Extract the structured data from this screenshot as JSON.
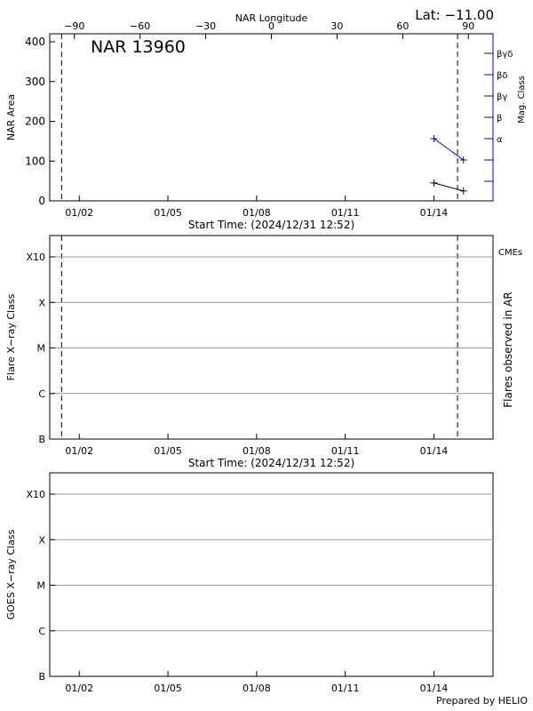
{
  "lat_label": "Lat: −11.00",
  "credit": "Prepared by HELIO",
  "colors": {
    "axis": "#000000",
    "mag": "#0000cc",
    "cme": "#cc0000",
    "grid": "#999999"
  },
  "chart_data": [
    {
      "type": "line",
      "panel": "nar",
      "title": "NAR 13960",
      "top_axis_label": "NAR Longitude",
      "top_ticks": [
        "−90",
        "−60",
        "−30",
        "0",
        "30",
        "60",
        "90"
      ],
      "top_tick_values": [
        -90,
        -60,
        -30,
        0,
        30,
        60,
        90
      ],
      "xlabel": "Start Time: (2024/12/31 12:52)",
      "x_tick_labels": [
        "01/02",
        "01/05",
        "01/08",
        "01/11",
        "01/14"
      ],
      "x_tick_days": [
        1.5,
        4.5,
        7.5,
        10.5,
        13.5
      ],
      "xlim_days": [
        0.5,
        15.5
      ],
      "ylabel": "NAR Area",
      "ylim": [
        0,
        400
      ],
      "y_ticks": [
        0,
        100,
        200,
        300,
        400
      ],
      "right_label": "Mag. Class",
      "right_ticks": [
        "α",
        "β",
        "βγ",
        "βδ",
        "βγδ"
      ],
      "vlines_days": [
        0.9,
        14.3
      ],
      "series": [
        {
          "kind": "area",
          "x_days": [
            13.5,
            14.5
          ],
          "values": [
            45,
            25
          ]
        },
        {
          "kind": "mag",
          "x_days": [
            13.5,
            14.5
          ],
          "values": [
            2,
            1
          ]
        }
      ]
    },
    {
      "type": "line",
      "panel": "flare",
      "xlabel": "Start Time: (2024/12/31 12:52)",
      "x_tick_labels": [
        "01/02",
        "01/05",
        "01/08",
        "01/11",
        "01/14"
      ],
      "x_tick_days": [
        1.5,
        4.5,
        7.5,
        10.5,
        13.5
      ],
      "xlim_days": [
        0.5,
        15.5
      ],
      "ylabel": "Flare X−ray Class",
      "y_ticks": [
        "B",
        "C",
        "M",
        "X",
        "X10"
      ],
      "right_label": "Flares observed in AR",
      "cme_label": "CMEs",
      "vlines_days": [
        0.9,
        14.3
      ],
      "grid": true
    },
    {
      "type": "line",
      "panel": "goes",
      "x_tick_labels": [
        "01/02",
        "01/05",
        "01/08",
        "01/11",
        "01/14"
      ],
      "x_tick_days": [
        1.5,
        4.5,
        7.5,
        10.5,
        13.5
      ],
      "xlim_days": [
        0.5,
        15.5
      ],
      "ylabel": "GOES X−ray Class",
      "y_ticks": [
        "B",
        "C",
        "M",
        "X",
        "X10"
      ],
      "grid": true
    }
  ]
}
